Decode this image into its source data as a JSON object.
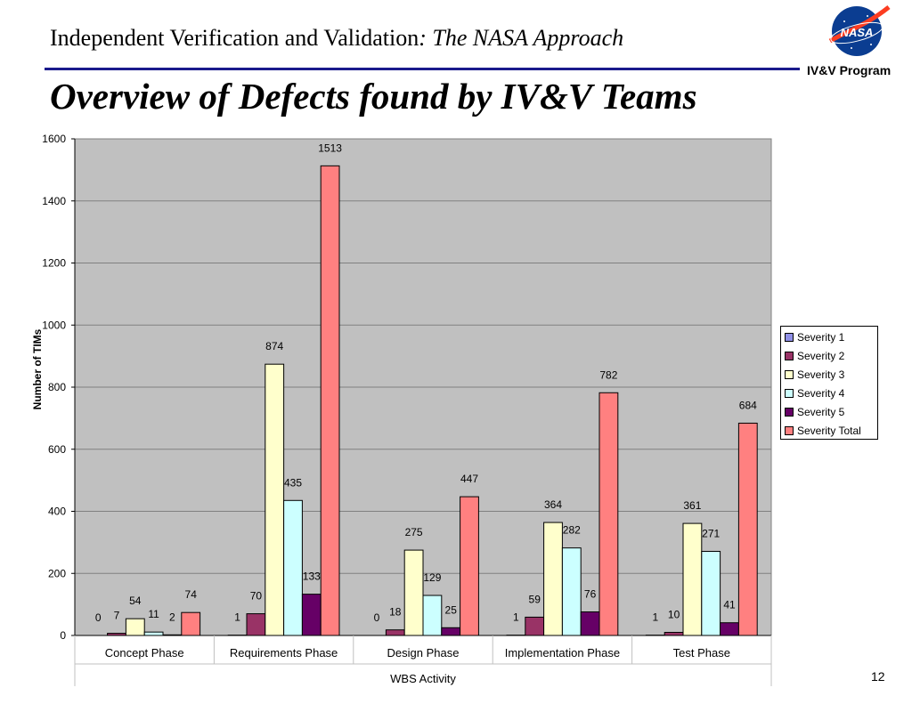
{
  "header": {
    "title_plain": "Independent Verification and Validation",
    "title_italic": ": The NASA Approach",
    "program_label": "IV&V Program",
    "logo_text": "NASA"
  },
  "slide": {
    "title": "Overview of Defects found by IV&V Teams",
    "page_number": "12"
  },
  "chart_data": {
    "type": "bar",
    "title": "",
    "xlabel": "WBS Activity",
    "ylabel": "Number of TIMs",
    "ylim": [
      0,
      1600
    ],
    "yticks": [
      "0",
      "200",
      "400",
      "600",
      "800",
      "1000",
      "1200",
      "1400",
      "1600"
    ],
    "grid": true,
    "legend_position": "right",
    "categories": [
      "Concept Phase",
      "Requirements Phase",
      "Design Phase",
      "Implementation Phase",
      "Test Phase"
    ],
    "series": [
      {
        "name": "Severity 1",
        "color": "#8f8fe6",
        "values": [
          0,
          1,
          0,
          1,
          1
        ]
      },
      {
        "name": "Severity 2",
        "color": "#993366",
        "values": [
          7,
          70,
          18,
          59,
          10
        ]
      },
      {
        "name": "Severity 3",
        "color": "#ffffcc",
        "values": [
          54,
          874,
          275,
          364,
          361
        ]
      },
      {
        "name": "Severity 4",
        "color": "#ccffff",
        "values": [
          11,
          435,
          129,
          282,
          271
        ]
      },
      {
        "name": "Severity 5",
        "color": "#660066",
        "values": [
          2,
          133,
          25,
          76,
          41
        ]
      },
      {
        "name": "Severity Total",
        "color": "#ff8080",
        "values": [
          74,
          1513,
          447,
          782,
          684
        ]
      }
    ],
    "plot_background": "#c0c0c0"
  }
}
